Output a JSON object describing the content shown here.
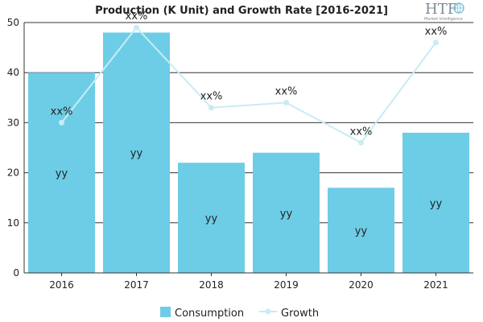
{
  "chart_data": {
    "type": "bar",
    "title": "Production (K Unit) and Growth Rate [2016-2021]",
    "categories": [
      "2016",
      "2017",
      "2018",
      "2019",
      "2020",
      "2021"
    ],
    "series": [
      {
        "name": "Consumption",
        "type": "bar",
        "values": [
          40,
          48,
          22,
          24,
          17,
          28
        ],
        "data_labels": [
          "yy",
          "yy",
          "yy",
          "yy",
          "yy",
          "yy"
        ],
        "color": "#6dcde6"
      },
      {
        "name": "Growth",
        "type": "line",
        "values": [
          30,
          49,
          33,
          34,
          26,
          46
        ],
        "data_labels": [
          "xx%",
          "xx%",
          "xx%",
          "xx%",
          "xx%",
          "xx%"
        ],
        "color": "#c8ecf4"
      }
    ],
    "ylim": [
      0,
      50
    ],
    "yticks": [
      0,
      10,
      20,
      30,
      40,
      50
    ],
    "grid": true,
    "legend": "bottom"
  },
  "logo": {
    "text": "HTF",
    "subtext": "Market Intelligence"
  }
}
